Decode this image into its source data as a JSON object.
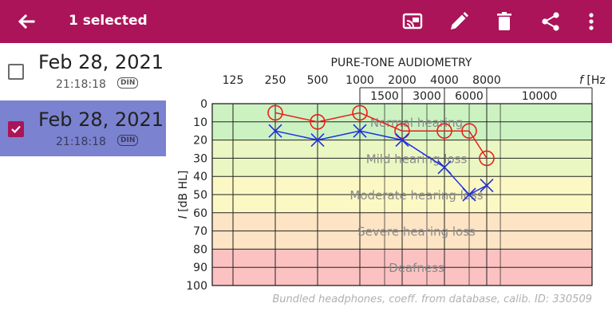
{
  "appbar": {
    "title": "1 selected",
    "icons": [
      "back-arrow-icon",
      "screen-cast-icon",
      "edit-pencil-icon",
      "delete-trash-icon",
      "share-icon",
      "more-vert-icon"
    ]
  },
  "list": {
    "items": [
      {
        "date": "Feb 28, 2021",
        "time": "21:18:18",
        "badge": "DIN",
        "selected": false
      },
      {
        "date": "Feb 28, 2021",
        "time": "21:18:18",
        "badge": "DIN",
        "selected": true
      }
    ]
  },
  "colors": {
    "appbar": "#ab1458",
    "selected_row": "#7b82cf",
    "right_ear": "#e8201b",
    "left_ear": "#1f2fe0",
    "zone_normal": "#ccf2c2",
    "zone_mild": "#ebf7c2",
    "zone_moderate": "#fbf8c4",
    "zone_severe": "#fde4c4",
    "zone_deaf": "#fcc2c2"
  },
  "chart_data": {
    "type": "line",
    "title": "PURE-TONE AUDIOMETRY",
    "xlabel": "f [Hz]",
    "ylabel": "I [dB HL]",
    "x_ticks_top": [
      "125",
      "250",
      "500",
      "1000",
      "2000",
      "4000",
      "8000"
    ],
    "x_ticks_inter": [
      "1500",
      "3000",
      "6000",
      "10000"
    ],
    "y_ticks": [
      "0",
      "10",
      "20",
      "30",
      "40",
      "50",
      "60",
      "70",
      "80",
      "90",
      "100"
    ],
    "ylim": [
      0,
      100
    ],
    "zones": [
      {
        "label": "Normal hearing",
        "from": 0,
        "to": 20
      },
      {
        "label": "Mild hearing loss",
        "from": 20,
        "to": 40
      },
      {
        "label": "Moderate hearing loss",
        "from": 40,
        "to": 60
      },
      {
        "label": "Severe hearing loss",
        "from": 60,
        "to": 80
      },
      {
        "label": "Deafness",
        "from": 80,
        "to": 100
      }
    ],
    "series": [
      {
        "marker": "circle",
        "color": "#e8201b",
        "x": [
          250,
          500,
          1000,
          2000,
          4000,
          6000,
          8000
        ],
        "values": [
          5,
          10,
          5,
          15,
          15,
          15,
          30
        ]
      },
      {
        "marker": "cross",
        "color": "#1f2fe0",
        "x": [
          250,
          500,
          1000,
          2000,
          4000,
          6000,
          8000
        ],
        "values": [
          15,
          20,
          15,
          20,
          35,
          50,
          45
        ]
      }
    ],
    "footer": "Bundled headphones, coeff. from database, calib. ID: 330509"
  }
}
